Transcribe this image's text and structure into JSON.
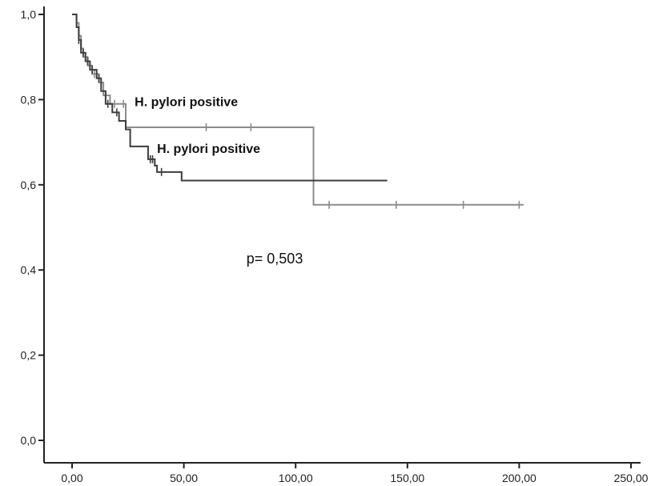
{
  "chart_data": {
    "type": "line",
    "subtype": "kaplan-meier-step",
    "title": "",
    "xlabel": "",
    "ylabel": "",
    "xlim": [
      0,
      250
    ],
    "ylim": [
      0,
      1
    ],
    "x_ticks": [
      0,
      50,
      100,
      150,
      200,
      250
    ],
    "x_tick_labels": [
      "0,00",
      "50,00",
      "100,00",
      "150,00",
      "200,00",
      "250,00"
    ],
    "y_ticks": [
      0,
      0.2,
      0.4,
      0.6,
      0.8,
      1.0
    ],
    "y_tick_labels": [
      "0,0",
      "0,2",
      "0,4",
      "0,6",
      "0,8",
      "1,0"
    ],
    "grid": false,
    "series": [
      {
        "name": "H. pylori positive",
        "color": "#8c8c8c",
        "steps": [
          [
            0,
            1.0
          ],
          [
            2,
            0.98
          ],
          [
            3,
            0.95
          ],
          [
            4,
            0.92
          ],
          [
            5,
            0.9
          ],
          [
            7,
            0.88
          ],
          [
            9,
            0.86
          ],
          [
            12,
            0.84
          ],
          [
            14,
            0.81
          ],
          [
            17,
            0.79
          ],
          [
            24,
            0.735
          ],
          [
            108,
            0.553
          ],
          [
            202,
            0.553
          ]
        ],
        "censored_x": [
          4,
          6,
          8,
          10,
          15,
          19,
          23,
          60,
          80,
          115,
          145,
          175,
          200
        ]
      },
      {
        "name": "H. pylori positive",
        "color": "#3d3d3d",
        "steps": [
          [
            0,
            1.0
          ],
          [
            2,
            0.97
          ],
          [
            3,
            0.94
          ],
          [
            4,
            0.91
          ],
          [
            6,
            0.89
          ],
          [
            8,
            0.87
          ],
          [
            11,
            0.85
          ],
          [
            13,
            0.82
          ],
          [
            15,
            0.79
          ],
          [
            18,
            0.77
          ],
          [
            21,
            0.75
          ],
          [
            24,
            0.73
          ],
          [
            26,
            0.69
          ],
          [
            34,
            0.66
          ],
          [
            37,
            0.645
          ],
          [
            38,
            0.63
          ],
          [
            49,
            0.61
          ],
          [
            141,
            0.61
          ]
        ],
        "censored_x": [
          3,
          5,
          7,
          9,
          12,
          16,
          20,
          35,
          36,
          40
        ]
      }
    ],
    "annotations": [
      {
        "text": "H. pylori positive",
        "x": 28,
        "y": 0.785,
        "series": 0
      },
      {
        "text": "H. pylori positive",
        "x": 38,
        "y": 0.675,
        "series": 1
      },
      {
        "text": "p= 0,503",
        "x": 78,
        "y": 0.415
      }
    ]
  }
}
